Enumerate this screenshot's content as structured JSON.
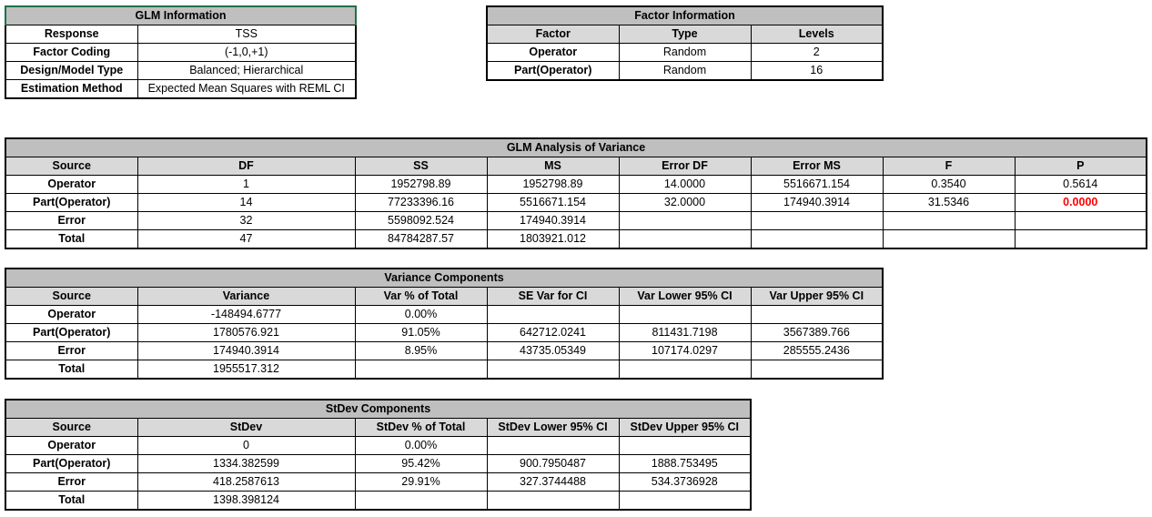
{
  "glm_info": {
    "title": "GLM Information",
    "rows": [
      {
        "label": "Response",
        "value": "TSS"
      },
      {
        "label": "Factor Coding",
        "value": "(-1,0,+1)"
      },
      {
        "label": "Design/Model Type",
        "value": "Balanced; Hierarchical"
      },
      {
        "label": "Estimation Method",
        "value": "Expected Mean Squares with REML CI"
      }
    ]
  },
  "factor_info": {
    "title": "Factor Information",
    "headers": [
      "Factor",
      "Type",
      "Levels"
    ],
    "rows": [
      [
        "Operator",
        "Random",
        "2"
      ],
      [
        "Part(Operator)",
        "Random",
        "16"
      ]
    ]
  },
  "anova": {
    "title": "GLM Analysis of Variance",
    "headers": [
      "Source",
      "DF",
      "SS",
      "MS",
      "Error DF",
      "Error MS",
      "F",
      "P"
    ],
    "rows": [
      [
        "Operator",
        "1",
        "1952798.89",
        "1952798.89",
        "14.0000",
        "5516671.154",
        "0.3540",
        "0.5614"
      ],
      [
        "Part(Operator)",
        "14",
        "77233396.16",
        "5516671.154",
        "32.0000",
        "174940.3914",
        "31.5346",
        "0.0000"
      ],
      [
        "Error",
        "32",
        "5598092.524",
        "174940.3914",
        "",
        "",
        "",
        ""
      ],
      [
        "Total",
        "47",
        "84784287.57",
        "1803921.012",
        "",
        "",
        "",
        ""
      ]
    ],
    "highlight_color": "#ff0000"
  },
  "variance_components": {
    "title": "Variance Components",
    "headers": [
      "Source",
      "Variance",
      "Var % of Total",
      "SE Var for CI",
      "Var Lower 95% CI",
      "Var Upper 95% CI"
    ],
    "rows": [
      [
        "Operator",
        "-148494.6777",
        "0.00%",
        "",
        "",
        ""
      ],
      [
        "Part(Operator)",
        "1780576.921",
        "91.05%",
        "642712.0241",
        "811431.7198",
        "3567389.766"
      ],
      [
        "Error",
        "174940.3914",
        "8.95%",
        "43735.05349",
        "107174.0297",
        "285555.2436"
      ],
      [
        "Total",
        "1955517.312",
        "",
        "",
        "",
        ""
      ]
    ]
  },
  "stdev_components": {
    "title": "StDev Components",
    "headers": [
      "Source",
      "StDev",
      "StDev % of Total",
      "StDev Lower 95% CI",
      "StDev Upper 95% CI"
    ],
    "rows": [
      [
        "Operator",
        "0",
        "0.00%",
        "",
        ""
      ],
      [
        "Part(Operator)",
        "1334.382599",
        "95.42%",
        "900.7950487",
        "1888.753495"
      ],
      [
        "Error",
        "418.2587613",
        "29.91%",
        "327.3744488",
        "534.3736928"
      ],
      [
        "Total",
        "1398.398124",
        "",
        "",
        ""
      ]
    ]
  }
}
